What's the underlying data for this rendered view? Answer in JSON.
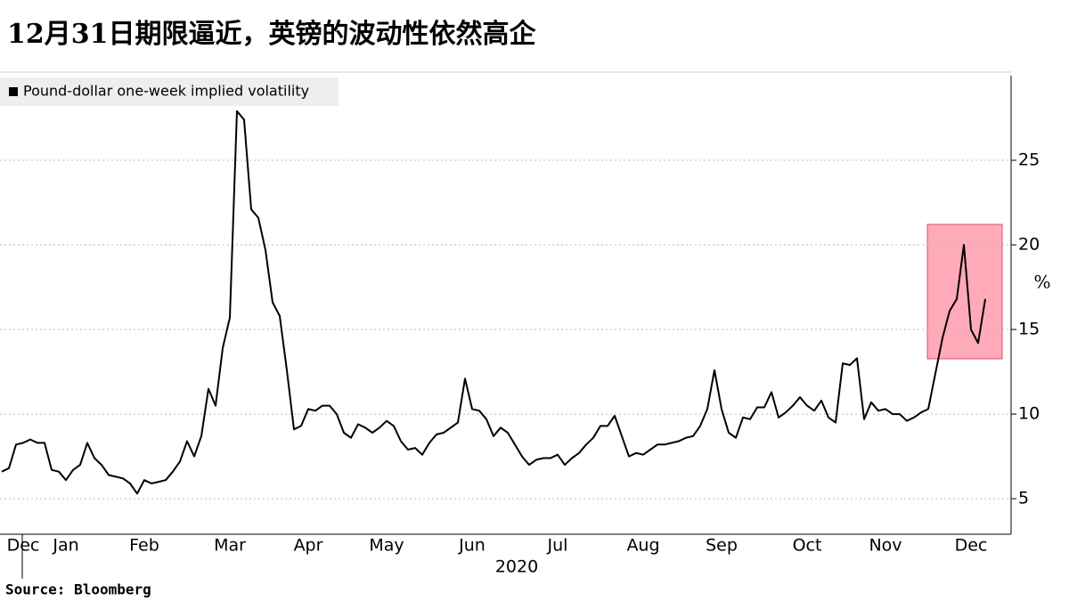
{
  "chart_data": {
    "type": "line",
    "title": "12月31日期限逼近，英镑的波动性依然高企",
    "y_label": "%",
    "x_label": "2020",
    "source": "Source: Bloomberg",
    "legend": "upper left",
    "grid": true,
    "ylim": [
      2.9,
      30
    ],
    "yticks": [
      5,
      10,
      15,
      20,
      25
    ],
    "categories": [
      null,
      null,
      null,
      "Dec",
      null,
      null,
      null,
      null,
      null,
      "Jan",
      null,
      null,
      null,
      null,
      null,
      null,
      null,
      null,
      null,
      null,
      "Feb",
      null,
      null,
      null,
      null,
      null,
      null,
      null,
      null,
      null,
      null,
      null,
      "Mar",
      null,
      null,
      null,
      null,
      null,
      null,
      null,
      null,
      null,
      null,
      "Apr",
      null,
      null,
      null,
      null,
      null,
      null,
      null,
      null,
      null,
      null,
      "May",
      null,
      null,
      null,
      null,
      null,
      null,
      null,
      null,
      null,
      null,
      null,
      "Jun",
      null,
      null,
      null,
      null,
      null,
      null,
      null,
      null,
      null,
      null,
      null,
      "Jul",
      null,
      null,
      null,
      null,
      null,
      null,
      null,
      null,
      null,
      null,
      null,
      "Aug",
      null,
      null,
      null,
      null,
      null,
      null,
      null,
      null,
      null,
      null,
      "Sep",
      null,
      null,
      null,
      null,
      null,
      null,
      null,
      null,
      null,
      null,
      null,
      "Oct",
      null,
      null,
      null,
      null,
      null,
      null,
      null,
      null,
      null,
      null,
      "Nov",
      null,
      null,
      null,
      null,
      null,
      null,
      null,
      null,
      null,
      null,
      null,
      "Dec",
      null,
      null
    ],
    "series": [
      {
        "name": "Pound-dollar one-week implied volatility",
        "color": "#000000",
        "values": [
          6.6,
          6.8,
          8.2,
          8.3,
          8.5,
          8.3,
          8.3,
          6.7,
          6.6,
          6.1,
          6.7,
          7.0,
          8.3,
          7.4,
          7.0,
          6.4,
          6.3,
          6.2,
          5.9,
          5.3,
          6.1,
          5.9,
          6.0,
          6.1,
          6.6,
          7.2,
          8.4,
          7.5,
          8.7,
          11.5,
          10.5,
          13.9,
          15.7,
          27.9,
          27.4,
          22.1,
          21.6,
          19.7,
          16.6,
          15.8,
          12.6,
          9.1,
          9.3,
          10.3,
          10.2,
          10.5,
          10.5,
          10.0,
          8.9,
          8.6,
          9.4,
          9.2,
          8.9,
          9.2,
          9.6,
          9.3,
          8.4,
          7.9,
          8.0,
          7.6,
          8.3,
          8.8,
          8.9,
          9.2,
          9.5,
          12.1,
          10.3,
          10.2,
          9.7,
          8.7,
          9.2,
          8.9,
          8.2,
          7.5,
          7.0,
          7.3,
          7.4,
          7.4,
          7.6,
          7.0,
          7.4,
          7.7,
          8.2,
          8.6,
          9.3,
          9.3,
          9.9,
          8.7,
          7.5,
          7.7,
          7.6,
          7.9,
          8.2,
          8.2,
          8.3,
          8.4,
          8.6,
          8.7,
          9.3,
          10.3,
          12.6,
          10.3,
          8.9,
          8.6,
          9.8,
          9.7,
          10.4,
          10.4,
          11.3,
          9.8,
          10.1,
          10.5,
          11.0,
          10.5,
          10.2,
          10.8,
          9.8,
          9.5,
          13.0,
          12.9,
          13.3,
          9.7,
          10.7,
          10.2,
          10.3,
          10.0,
          10.0,
          9.6,
          9.8,
          10.1,
          10.3,
          12.4,
          14.5,
          16.1,
          16.8,
          20.0,
          15.0,
          14.2,
          16.8
        ]
      }
    ]
  }
}
